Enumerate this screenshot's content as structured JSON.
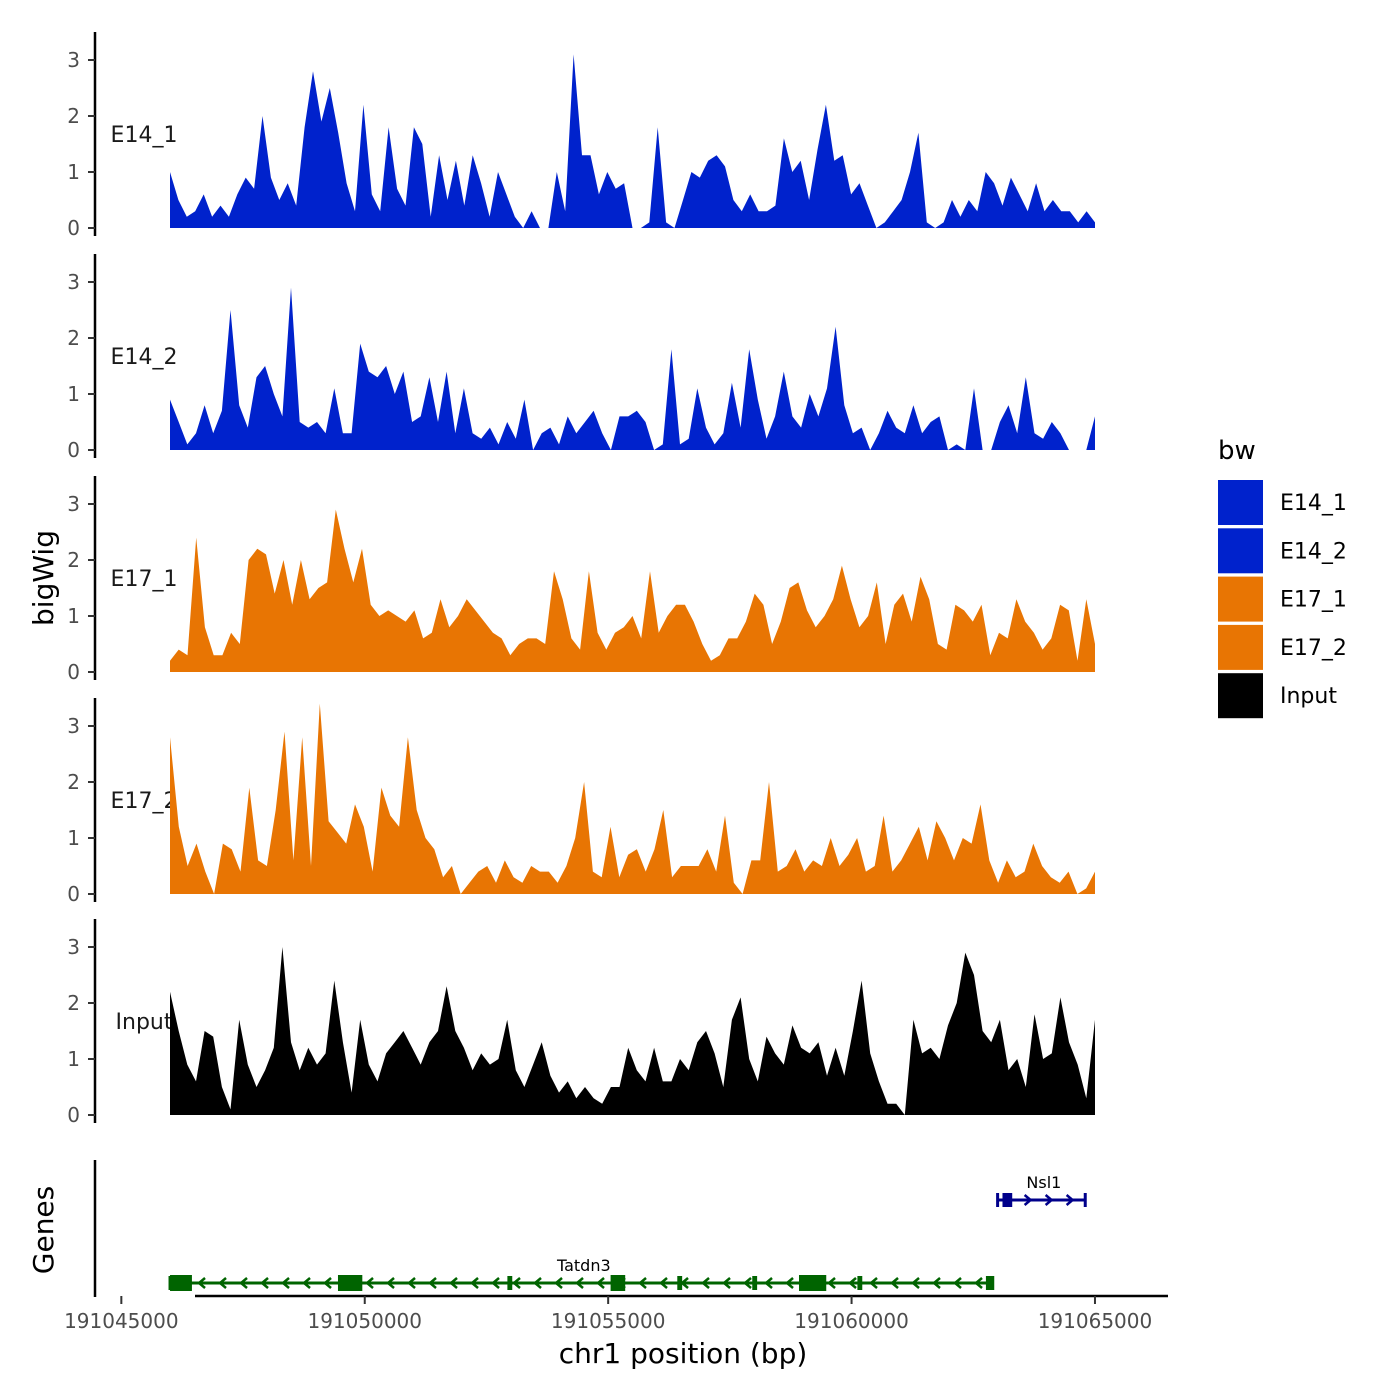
{
  "chart_data": {
    "type": "area",
    "title": "",
    "xlabel": "chr1 position (bp)",
    "ylabel": "bigWig",
    "gene_axis_label": "Genes",
    "x_range": [
      191045000,
      191065000
    ],
    "x_domain": [
      191044500,
      191066500
    ],
    "x_ticks": [
      191045000,
      191050000,
      191055000,
      191060000,
      191065000
    ],
    "x_tick_labels": [
      "191045000",
      "191050000",
      "191055000",
      "191060000",
      "191065000"
    ],
    "ylim": [
      0,
      3.5
    ],
    "y_ticks": [
      0,
      1,
      2,
      3
    ],
    "y_tick_labels": [
      "0",
      "1",
      "2",
      "3"
    ],
    "data_x_range": [
      191046000,
      191065000
    ],
    "legend": {
      "title": "bw",
      "position": "right",
      "entries": [
        {
          "label": "E14_1",
          "color": "#0022CC"
        },
        {
          "label": "E14_2",
          "color": "#0022CC"
        },
        {
          "label": "E17_1",
          "color": "#E87503"
        },
        {
          "label": "E17_2",
          "color": "#E87503"
        },
        {
          "label": "Input",
          "color": "#000000"
        }
      ]
    },
    "series": [
      {
        "name": "E14_1",
        "color": "#0022CC",
        "values": [
          1.0,
          0.5,
          0.2,
          0.3,
          0.6,
          0.2,
          0.4,
          0.2,
          0.6,
          0.9,
          0.7,
          2.0,
          0.9,
          0.5,
          0.8,
          0.4,
          1.8,
          2.8,
          1.9,
          2.5,
          1.7,
          0.8,
          0.3,
          2.2,
          0.6,
          0.3,
          1.8,
          0.7,
          0.4,
          1.8,
          1.5,
          0.2,
          1.3,
          0.5,
          1.2,
          0.4,
          1.3,
          0.8,
          0.2,
          1.0,
          0.6,
          0.2,
          0.0,
          0.3,
          0.0,
          0.0,
          1.0,
          0.3,
          3.1,
          1.3,
          1.3,
          0.6,
          1.0,
          0.7,
          0.8,
          0.0,
          0.0,
          0.1,
          1.8,
          0.1,
          0.0,
          0.5,
          1.0,
          0.9,
          1.2,
          1.3,
          1.1,
          0.5,
          0.3,
          0.6,
          0.3,
          0.3,
          0.4,
          1.6,
          1.0,
          1.2,
          0.5,
          1.4,
          2.2,
          1.2,
          1.3,
          0.6,
          0.8,
          0.4,
          0.0,
          0.1,
          0.3,
          0.5,
          1.0,
          1.7,
          0.1,
          0.0,
          0.1,
          0.5,
          0.2,
          0.5,
          0.3,
          1.0,
          0.8,
          0.4,
          0.9,
          0.6,
          0.3,
          0.8,
          0.3,
          0.5,
          0.3,
          0.3,
          0.1,
          0.3,
          0.1
        ]
      },
      {
        "name": "E14_2",
        "color": "#0022CC",
        "values": [
          0.9,
          0.5,
          0.1,
          0.3,
          0.8,
          0.3,
          0.7,
          2.5,
          0.8,
          0.4,
          1.3,
          1.5,
          1.0,
          0.6,
          2.9,
          0.5,
          0.4,
          0.5,
          0.3,
          1.1,
          0.3,
          0.3,
          1.9,
          1.4,
          1.3,
          1.5,
          1.0,
          1.4,
          0.5,
          0.6,
          1.3,
          0.5,
          1.4,
          0.3,
          1.1,
          0.3,
          0.2,
          0.4,
          0.1,
          0.5,
          0.2,
          0.9,
          0.0,
          0.3,
          0.4,
          0.1,
          0.6,
          0.3,
          0.5,
          0.7,
          0.3,
          0.0,
          0.6,
          0.6,
          0.7,
          0.5,
          0.0,
          0.1,
          1.8,
          0.1,
          0.2,
          1.1,
          0.4,
          0.1,
          0.3,
          1.2,
          0.4,
          1.8,
          0.9,
          0.2,
          0.6,
          1.4,
          0.6,
          0.4,
          1.0,
          0.6,
          1.1,
          2.2,
          0.8,
          0.3,
          0.4,
          0.0,
          0.3,
          0.7,
          0.4,
          0.3,
          0.8,
          0.3,
          0.5,
          0.6,
          0.0,
          0.1,
          0.0,
          1.1,
          0.0,
          0.0,
          0.5,
          0.8,
          0.3,
          1.3,
          0.3,
          0.2,
          0.5,
          0.3,
          0.0,
          0.0,
          0.0,
          0.6
        ]
      },
      {
        "name": "E17_1",
        "color": "#E87503",
        "values": [
          0.2,
          0.4,
          0.3,
          2.4,
          0.8,
          0.3,
          0.3,
          0.7,
          0.5,
          2.0,
          2.2,
          2.1,
          1.4,
          2.0,
          1.2,
          2.0,
          1.3,
          1.5,
          1.6,
          2.9,
          2.2,
          1.6,
          2.2,
          1.2,
          1.0,
          1.1,
          1.0,
          0.9,
          1.1,
          0.6,
          0.7,
          1.3,
          0.8,
          1.0,
          1.3,
          1.1,
          0.9,
          0.7,
          0.6,
          0.3,
          0.5,
          0.6,
          0.6,
          0.5,
          1.8,
          1.3,
          0.6,
          0.4,
          1.8,
          0.7,
          0.4,
          0.7,
          0.8,
          1.0,
          0.6,
          1.8,
          0.7,
          1.0,
          1.2,
          1.2,
          0.9,
          0.5,
          0.2,
          0.3,
          0.6,
          0.6,
          0.9,
          1.4,
          1.2,
          0.5,
          0.9,
          1.5,
          1.6,
          1.1,
          0.8,
          1.0,
          1.3,
          1.9,
          1.3,
          0.8,
          1.0,
          1.6,
          0.5,
          1.2,
          1.4,
          0.9,
          1.7,
          1.3,
          0.5,
          0.4,
          1.2,
          1.1,
          0.9,
          1.2,
          0.3,
          0.7,
          0.6,
          1.3,
          0.9,
          0.7,
          0.4,
          0.6,
          1.2,
          1.1,
          0.2,
          1.3,
          0.5
        ]
      },
      {
        "name": "E17_2",
        "color": "#E87503",
        "values": [
          2.8,
          1.2,
          0.5,
          0.9,
          0.4,
          0.0,
          0.9,
          0.8,
          0.4,
          1.9,
          0.6,
          0.5,
          1.5,
          2.9,
          0.6,
          2.8,
          0.5,
          3.4,
          1.3,
          1.1,
          0.9,
          1.6,
          1.2,
          0.4,
          1.9,
          1.4,
          1.2,
          2.8,
          1.5,
          1.0,
          0.8,
          0.3,
          0.5,
          0.0,
          0.2,
          0.4,
          0.5,
          0.2,
          0.6,
          0.3,
          0.2,
          0.5,
          0.4,
          0.4,
          0.2,
          0.5,
          1.0,
          2.0,
          0.4,
          0.3,
          1.2,
          0.3,
          0.7,
          0.8,
          0.4,
          0.8,
          1.5,
          0.3,
          0.5,
          0.5,
          0.5,
          0.8,
          0.4,
          1.4,
          0.2,
          0.0,
          0.6,
          0.6,
          2.0,
          0.4,
          0.5,
          0.8,
          0.4,
          0.6,
          0.5,
          1.0,
          0.5,
          0.7,
          1.0,
          0.4,
          0.5,
          1.4,
          0.4,
          0.6,
          0.9,
          1.2,
          0.6,
          1.3,
          1.0,
          0.6,
          1.0,
          0.9,
          1.6,
          0.6,
          0.2,
          0.6,
          0.3,
          0.4,
          0.9,
          0.5,
          0.3,
          0.2,
          0.4,
          0.0,
          0.1,
          0.4
        ]
      },
      {
        "name": "Input",
        "color": "#000000",
        "values": [
          2.2,
          1.5,
          0.9,
          0.6,
          1.5,
          1.4,
          0.5,
          0.1,
          1.7,
          0.9,
          0.5,
          0.8,
          1.2,
          3.0,
          1.3,
          0.8,
          1.2,
          0.9,
          1.1,
          2.4,
          1.3,
          0.4,
          1.7,
          0.9,
          0.6,
          1.1,
          1.3,
          1.5,
          1.2,
          0.9,
          1.3,
          1.5,
          2.3,
          1.5,
          1.2,
          0.8,
          1.1,
          0.9,
          1.0,
          1.7,
          0.8,
          0.5,
          0.9,
          1.3,
          0.7,
          0.4,
          0.6,
          0.3,
          0.5,
          0.3,
          0.2,
          0.5,
          0.5,
          1.2,
          0.8,
          0.6,
          1.2,
          0.6,
          0.6,
          1.0,
          0.8,
          1.3,
          1.5,
          1.1,
          0.5,
          1.7,
          2.1,
          1.0,
          0.6,
          1.4,
          1.1,
          0.9,
          1.6,
          1.2,
          1.1,
          1.3,
          0.7,
          1.2,
          0.7,
          1.5,
          2.4,
          1.1,
          0.6,
          0.2,
          0.2,
          0.0,
          1.7,
          1.1,
          1.2,
          1.0,
          1.6,
          2.0,
          2.9,
          2.5,
          1.5,
          1.3,
          1.7,
          0.8,
          1.0,
          0.5,
          1.8,
          1.0,
          1.1,
          2.1,
          1.3,
          0.9,
          0.3,
          1.7
        ]
      }
    ],
    "genes": [
      {
        "name": "Nsl1",
        "strand": "+",
        "start": 191063000,
        "end": 191064800,
        "color": "#00008B",
        "exons": [
          [
            191063100,
            191063300
          ]
        ]
      },
      {
        "name": "Tatdn3",
        "strand": "-",
        "start": 191046000,
        "end": 191062900,
        "color": "#006400",
        "exons": [
          [
            191046000,
            191046450
          ],
          [
            191049450,
            191049950
          ],
          [
            191052930,
            191053030
          ],
          [
            191055050,
            191055350
          ],
          [
            191056420,
            191056520
          ],
          [
            191057960,
            191058060
          ],
          [
            191058920,
            191059480
          ],
          [
            191060120,
            191060220
          ],
          [
            191062760,
            191062880
          ]
        ]
      }
    ]
  }
}
